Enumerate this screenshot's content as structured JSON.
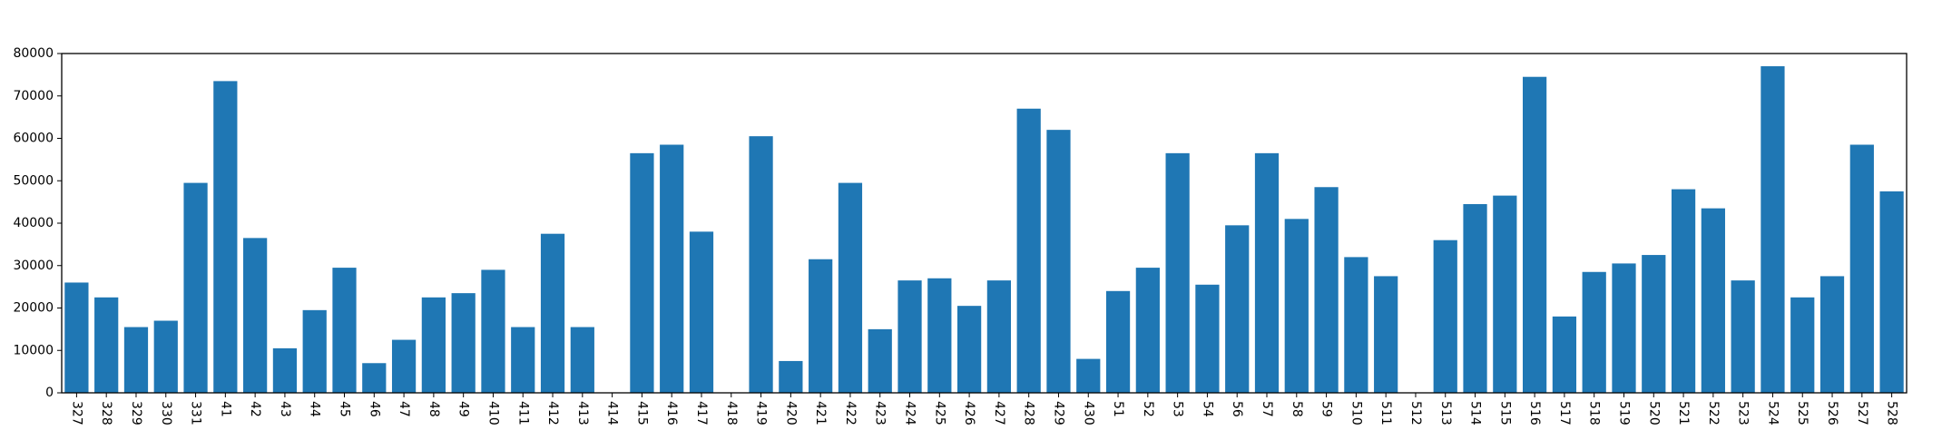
{
  "chart_data": {
    "type": "bar",
    "categories": [
      "327",
      "328",
      "329",
      "330",
      "331",
      "41",
      "42",
      "43",
      "44",
      "45",
      "46",
      "47",
      "48",
      "49",
      "410",
      "411",
      "412",
      "413",
      "414",
      "415",
      "416",
      "417",
      "418",
      "419",
      "420",
      "421",
      "422",
      "423",
      "424",
      "425",
      "426",
      "427",
      "428",
      "429",
      "430",
      "51",
      "52",
      "53",
      "54",
      "56",
      "57",
      "58",
      "59",
      "510",
      "511",
      "512",
      "513",
      "514",
      "515",
      "516",
      "517",
      "518",
      "519",
      "520",
      "521",
      "522",
      "523",
      "524",
      "525",
      "526",
      "527",
      "528"
    ],
    "values": [
      26000,
      22500,
      15500,
      17000,
      49500,
      73500,
      36500,
      10500,
      19500,
      29500,
      7000,
      12500,
      22500,
      23500,
      29000,
      15500,
      37500,
      15500,
      0,
      56500,
      58500,
      38000,
      0,
      60500,
      7500,
      31500,
      49500,
      15000,
      26500,
      27000,
      20500,
      26500,
      67000,
      62000,
      8000,
      24000,
      29500,
      56500,
      25500,
      39500,
      56500,
      41000,
      48500,
      32000,
      27500,
      0,
      36000,
      44500,
      46500,
      74500,
      18000,
      28500,
      30500,
      32500,
      48000,
      43500,
      26500,
      77000,
      22500,
      27500,
      58500,
      47500
    ],
    "title": "",
    "xlabel": "",
    "ylabel": "",
    "ylim": [
      0,
      80000
    ],
    "yticks": [
      0,
      10000,
      20000,
      30000,
      40000,
      50000,
      60000,
      70000,
      80000
    ],
    "bar_color": "#1f77b4",
    "grid": false,
    "x_tick_rotation": "vertical"
  }
}
